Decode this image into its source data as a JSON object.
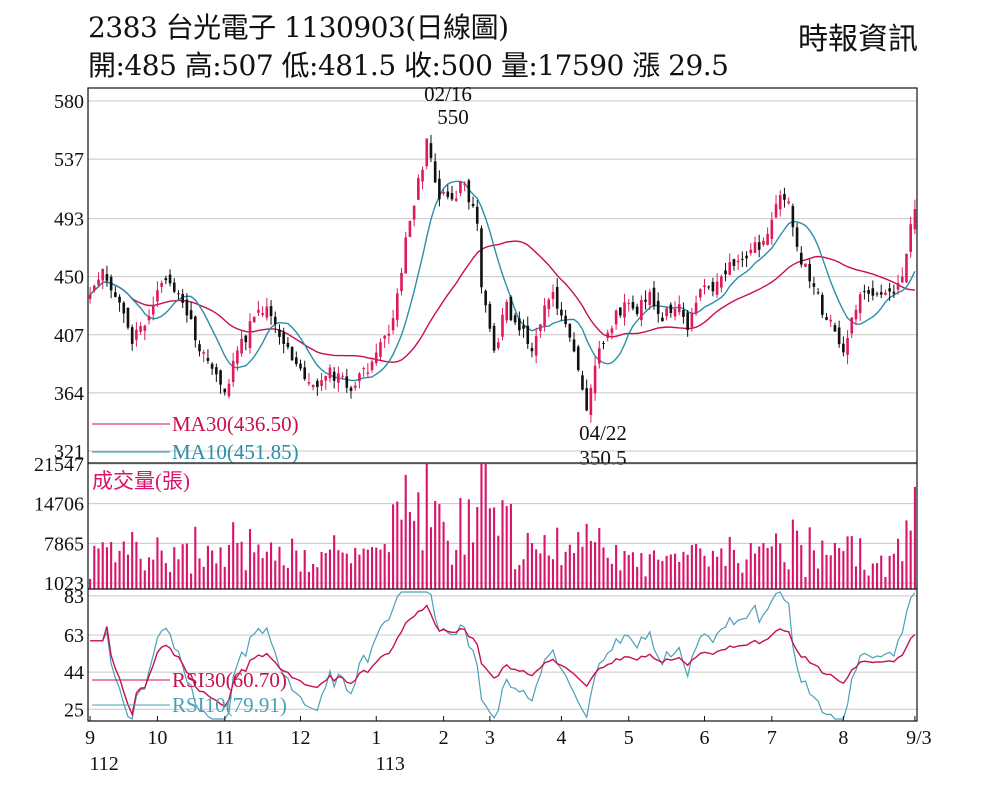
{
  "header": {
    "title": "2383  台光電子 1130903(日線圖)",
    "ohlc": "開:485 高:507 低:481.5 收:500 量:17590 漲 29.5",
    "source": "時報資訊"
  },
  "colors": {
    "up": "#e0195a",
    "down": "#111111",
    "ma30": "#c8104e",
    "ma10": "#2a8fa8",
    "volume": "#d8156b",
    "rsi30": "#c8104e",
    "rsi10": "#4aa0b8",
    "grid": "#c8c8c8"
  },
  "chart_data": [
    {
      "type": "candlestick",
      "ylim": [
        321,
        580
      ],
      "yticks": [
        "580",
        "537",
        "493",
        "450",
        "407",
        "364",
        "321"
      ],
      "xticks": [
        "9",
        "10",
        "11",
        "12",
        "1",
        "2",
        "3",
        "4",
        "5",
        "6",
        "7",
        "8",
        "9/3"
      ],
      "xticks_year": [
        "112",
        "113"
      ],
      "annotations": {
        "high": {
          "date": "02/16",
          "value": "550"
        },
        "low": {
          "date": "04/22",
          "value": "350.5"
        }
      },
      "legend": [
        {
          "label": "MA30(436.50)",
          "color_key": "ma30"
        },
        {
          "label": "MA10(451.85)",
          "color_key": "ma10"
        }
      ],
      "last_candle": {
        "open": 485,
        "high": 507,
        "low": 481.5,
        "close": 500
      },
      "anchors": [
        [
          0,
          440
        ],
        [
          3,
          452
        ],
        [
          6,
          435
        ],
        [
          10,
          405
        ],
        [
          13,
          418
        ],
        [
          17,
          445
        ],
        [
          20,
          440
        ],
        [
          23,
          425
        ],
        [
          26,
          398
        ],
        [
          29,
          385
        ],
        [
          32,
          360
        ],
        [
          35,
          395
        ],
        [
          39,
          418
        ],
        [
          42,
          432
        ],
        [
          45,
          410
        ],
        [
          48,
          392
        ],
        [
          51,
          378
        ],
        [
          54,
          372
        ],
        [
          57,
          380
        ],
        [
          60,
          372
        ],
        [
          63,
          368
        ],
        [
          66,
          384
        ],
        [
          69,
          400
        ],
        [
          72,
          415
        ],
        [
          75,
          475
        ],
        [
          78,
          520
        ],
        [
          80,
          548
        ],
        [
          83,
          510
        ],
        [
          86,
          508
        ],
        [
          89,
          520
        ],
        [
          92,
          488
        ],
        [
          93,
          445
        ],
        [
          96,
          395
        ],
        [
          99,
          428
        ],
        [
          102,
          412
        ],
        [
          105,
          398
        ],
        [
          108,
          430
        ],
        [
          110,
          442
        ],
        [
          113,
          410
        ],
        [
          116,
          385
        ],
        [
          118,
          354
        ],
        [
          121,
          395
        ],
        [
          124,
          415
        ],
        [
          127,
          430
        ],
        [
          130,
          425
        ],
        [
          133,
          435
        ],
        [
          136,
          420
        ],
        [
          139,
          430
        ],
        [
          142,
          415
        ],
        [
          145,
          440
        ],
        [
          148,
          438
        ],
        [
          151,
          455
        ],
        [
          154,
          460
        ],
        [
          157,
          470
        ],
        [
          160,
          475
        ],
        [
          163,
          505
        ],
        [
          166,
          510
        ],
        [
          168,
          470
        ],
        [
          171,
          450
        ],
        [
          174,
          425
        ],
        [
          177,
          410
        ],
        [
          179,
          395
        ],
        [
          182,
          430
        ],
        [
          185,
          440
        ],
        [
          188,
          432
        ],
        [
          190,
          438
        ],
        [
          193,
          450
        ],
        [
          195,
          485
        ],
        [
          196,
          500
        ]
      ]
    },
    {
      "type": "bar",
      "label": "成交量(張)",
      "ylim": [
        0,
        21547
      ],
      "yticks": [
        "21547",
        "14706",
        "7865",
        "1023"
      ],
      "last_volume": 17590
    },
    {
      "type": "line",
      "ylim": [
        19,
        86
      ],
      "yticks": [
        "83",
        "63",
        "44",
        "25"
      ],
      "legend": [
        {
          "label": "RSI30(60.70)",
          "color_key": "rsi30"
        },
        {
          "label": "RSI10(79.91)",
          "color_key": "rsi10"
        }
      ]
    }
  ]
}
